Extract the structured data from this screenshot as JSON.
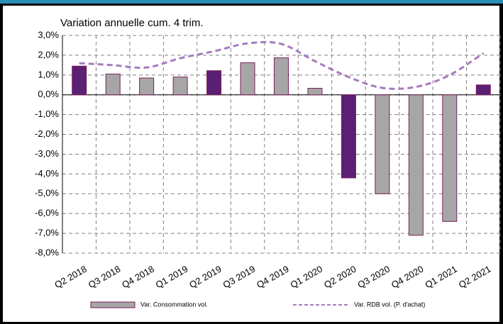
{
  "chart_data": {
    "type": "bar_line",
    "title": "Variation annuelle cum. 4 trim.",
    "categories": [
      "Q2 2018",
      "Q3 2018",
      "Q4 2018",
      "Q1 2019",
      "Q2 2019",
      "Q3 2019",
      "Q4 2019",
      "Q1 2020",
      "Q2 2020",
      "Q3 2020",
      "Q4 2020",
      "Q1 2021",
      "Q2 2021"
    ],
    "series": [
      {
        "name": "Var. Consommation vol.",
        "kind": "bar",
        "color": "#a6a6a6",
        "edge_color": "#7b1f5a",
        "point_colors": [
          "#5b1f74",
          "#a6a6a6",
          "#a6a6a6",
          "#a6a6a6",
          "#5b1f74",
          "#a6a6a6",
          "#a6a6a6",
          "#a6a6a6",
          "#5b1f74",
          "#a6a6a6",
          "#a6a6a6",
          "#a6a6a6",
          "#5b1f74"
        ],
        "values": [
          1.45,
          1.05,
          0.85,
          0.9,
          1.22,
          1.62,
          1.87,
          0.33,
          -4.2,
          -5.0,
          -7.1,
          -6.4,
          0.5
        ]
      },
      {
        "name": "Var. RDB vol. (P. d'achat)",
        "kind": "line",
        "color": "#a77ac0",
        "values": [
          1.6,
          1.5,
          1.38,
          1.85,
          2.2,
          2.6,
          2.57,
          1.7,
          0.9,
          0.35,
          0.4,
          1.0,
          2.1
        ]
      }
    ],
    "ylim": [
      -8,
      3
    ],
    "yticks": [
      {
        "value": 3,
        "label": "3,0%"
      },
      {
        "value": 2,
        "label": "2,0%"
      },
      {
        "value": 1,
        "label": "1,0%"
      },
      {
        "value": 0,
        "label": "0,0%"
      },
      {
        "value": -1,
        "label": "-1,0%"
      },
      {
        "value": -2,
        "label": "-2,0%"
      },
      {
        "value": -3,
        "label": "-3,0%"
      },
      {
        "value": -4,
        "label": "-4,0%"
      },
      {
        "value": -5,
        "label": "-5,0%"
      },
      {
        "value": -6,
        "label": "-6,0%"
      },
      {
        "value": -7,
        "label": "-7,0%"
      },
      {
        "value": -8,
        "label": "-8,0%"
      }
    ],
    "grid": true
  }
}
